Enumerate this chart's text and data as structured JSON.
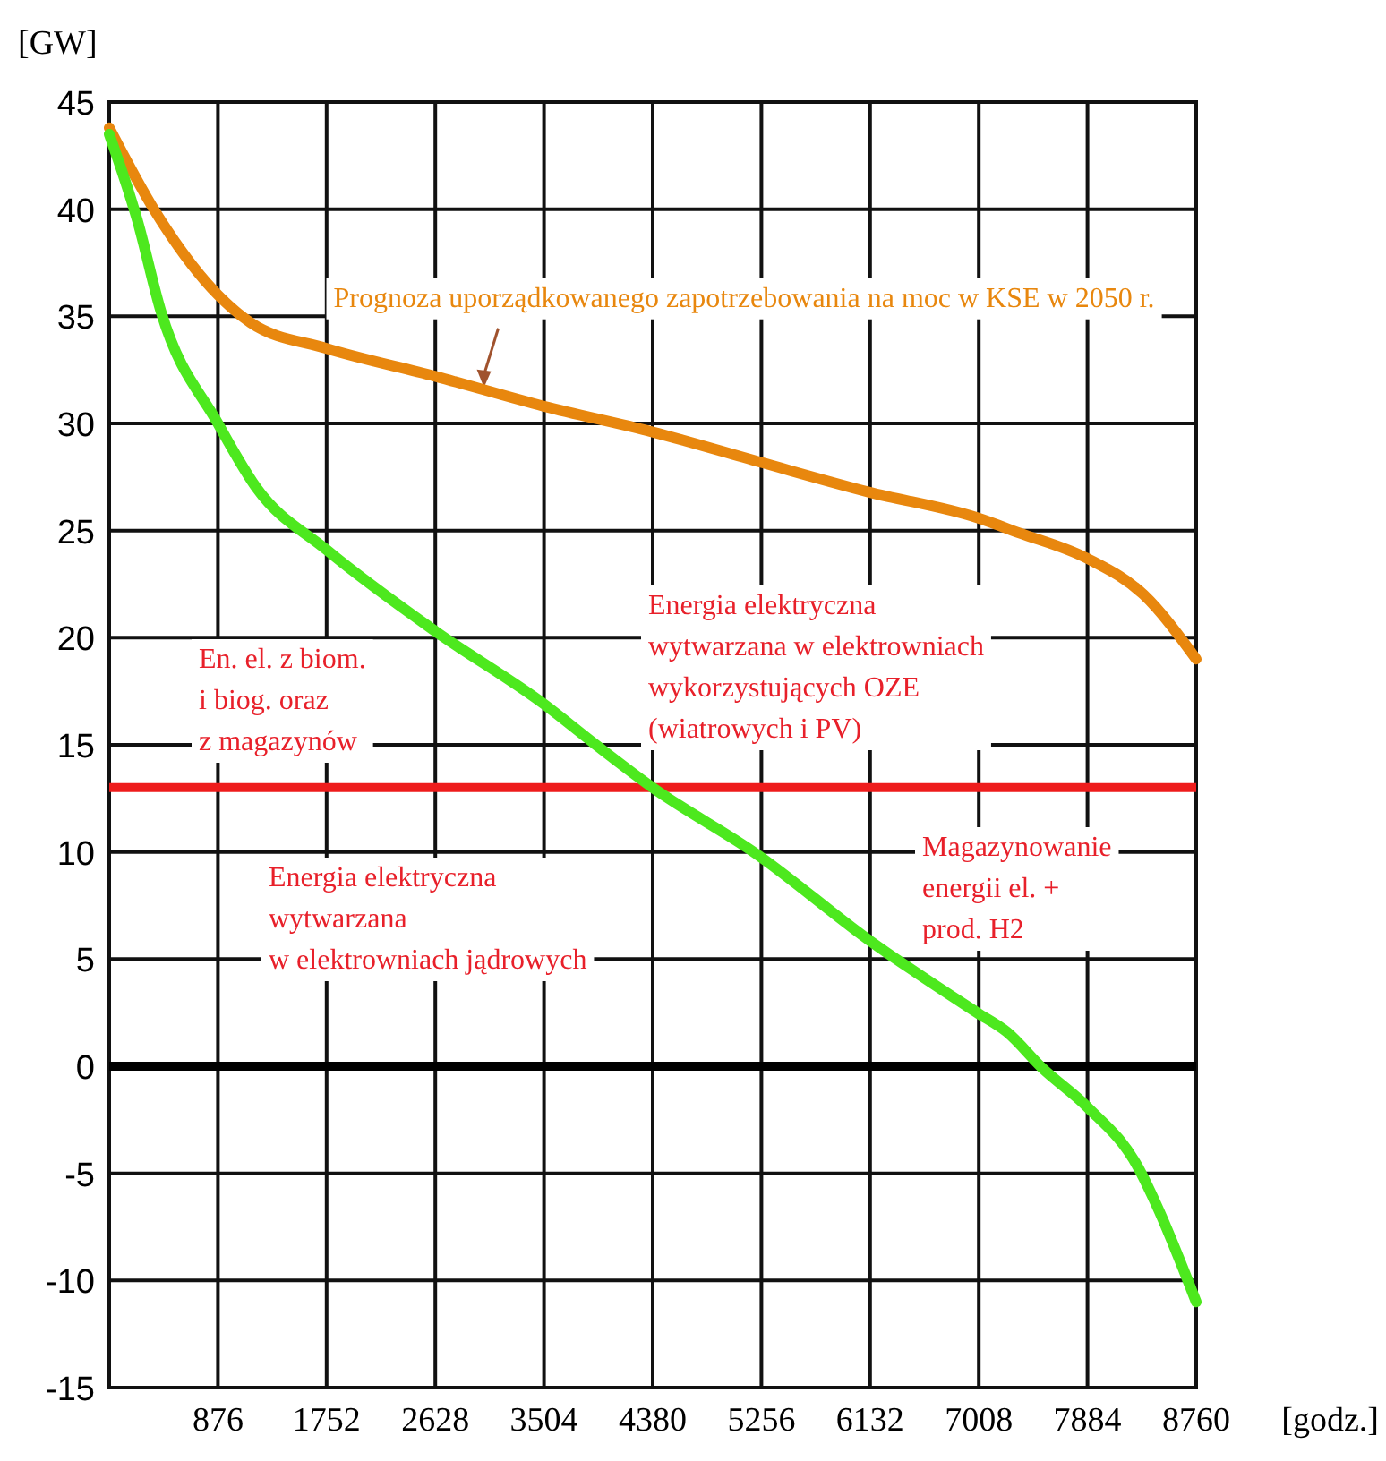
{
  "chart_data": {
    "type": "line",
    "xlabel": "[godz.]",
    "ylabel": "[GW]",
    "xlim": [
      0,
      8760
    ],
    "xticks": [
      876,
      1752,
      2628,
      3504,
      4380,
      5256,
      6132,
      7008,
      7884,
      8760
    ],
    "ylim": [
      -15,
      45
    ],
    "yticks": [
      -15,
      -10,
      -5,
      0,
      5,
      10,
      15,
      20,
      25,
      30,
      35,
      40,
      45
    ],
    "grid": true,
    "series": [
      {
        "color": "#e8870e",
        "x": [
          0,
          370,
          876,
          1140,
          1752,
          2628,
          3504,
          4380,
          5242,
          6120,
          6994,
          7330,
          7882,
          8338,
          8760
        ],
        "values": [
          43.8,
          39.9,
          36.0,
          34.7,
          33.5,
          32.2,
          30.8,
          29.6,
          28.2,
          26.8,
          25.6,
          24.9,
          23.7,
          22.0,
          19.0
        ]
      },
      {
        "color": "#4de81e",
        "x": [
          0,
          226,
          418,
          876,
          1186,
          1752,
          2628,
          3504,
          3922,
          4380,
          5218,
          6120,
          6994,
          7234,
          7522,
          7882,
          8290,
          8434,
          8760
        ],
        "values": [
          43.5,
          39.5,
          35.2,
          30.0,
          27.0,
          24.1,
          20.3,
          16.9,
          15.0,
          13.0,
          9.9,
          5.9,
          2.5,
          1.6,
          -0.1,
          -1.9,
          -4.7,
          -6.4,
          -11.0
        ]
      }
    ],
    "ref_lines": [
      {
        "axis": "y",
        "value": 13,
        "color": "#ee1c1c"
      },
      {
        "axis": "y",
        "value": 0,
        "color": "#000000"
      }
    ],
    "annotations": [
      {
        "text": "Prognoza uporządkowanego zapotrzebowania na moc w KSE w 2050 r.",
        "x": 3020,
        "y": 31.6
      },
      "En. el. z biom.\ni biog. oraz\nz magazynów",
      "Energia elektryczna\nwytwarzana w elektrowniach\nwykorzystujących OZE\n(wiatrowych i PV)",
      "Energia elektryczna\nwytwarzana\nw elektrowniach jądrowych",
      "Magazynowanie\nenergii el. +\nprod. H2"
    ]
  }
}
